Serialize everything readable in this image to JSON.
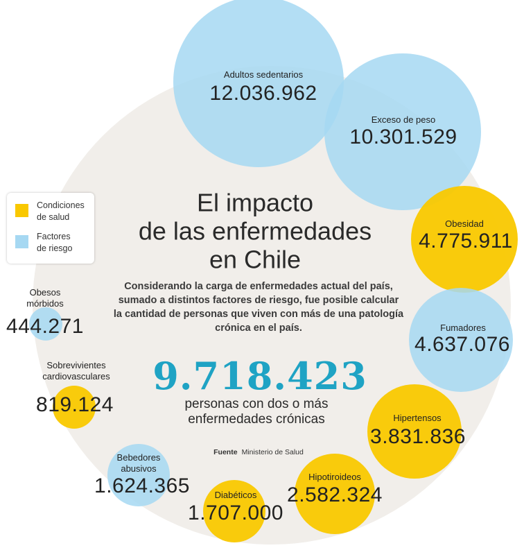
{
  "colors": {
    "condiciones": "#f9c800",
    "factores": "#a6d8f2",
    "background_circle": "#f1eeea",
    "highlight": "#1fa3c4"
  },
  "title": [
    "El impacto",
    "de las enfermedades",
    "en Chile"
  ],
  "intro": [
    "Considerando la carga de enfermedades actual del país,",
    "sumado a distintos factores de riesgo, fue posible calcular",
    "la cantidad de personas que viven con más de una patología",
    "crónica en el país."
  ],
  "total": {
    "value": "9.718.423",
    "label": [
      "personas con dos o más",
      "enfermedades crónicas"
    ]
  },
  "source": {
    "label": "Fuente",
    "text": "Ministerio de Salud"
  },
  "legend": [
    {
      "label": [
        "Condiciones",
        "de salud"
      ],
      "category": "condiciones"
    },
    {
      "label": [
        "Factores",
        "de riesgo"
      ],
      "category": "factores"
    }
  ],
  "chart_data": {
    "type": "bubble",
    "title": "El impacto de las enfermedades en Chile",
    "unit": "personas",
    "series": [
      {
        "name": "Adultos sedentarios",
        "label": [
          "Adultos sedentarios"
        ],
        "display": "12.036.962",
        "value": 12036962,
        "category": "factores"
      },
      {
        "name": "Exceso de peso",
        "label": [
          "Exceso de peso"
        ],
        "display": "10.301.529",
        "value": 10301529,
        "category": "factores"
      },
      {
        "name": "Obesidad",
        "label": [
          "Obesidad"
        ],
        "display": "4.775.911",
        "value": 4775911,
        "category": "condiciones"
      },
      {
        "name": "Fumadores",
        "label": [
          "Fumadores"
        ],
        "display": "4.637.076",
        "value": 4637076,
        "category": "factores"
      },
      {
        "name": "Hipertensos",
        "label": [
          "Hipertensos"
        ],
        "display": "3.831.836",
        "value": 3831836,
        "category": "condiciones"
      },
      {
        "name": "Hipotiroideos",
        "label": [
          "Hipotiroideos"
        ],
        "display": "2.582.324",
        "value": 2582324,
        "category": "condiciones"
      },
      {
        "name": "Diabéticos",
        "label": [
          "Diabéticos"
        ],
        "display": "1.707.000",
        "value": 1707000,
        "category": "condiciones"
      },
      {
        "name": "Bebedores abusivos",
        "label": [
          "Bebedores",
          "abusivos"
        ],
        "display": "1.624.365",
        "value": 1624365,
        "category": "factores"
      },
      {
        "name": "Sobrevivientes cardiovasculares",
        "label": [
          "Sobrevivientes",
          "cardiovasculares"
        ],
        "display": "819.124",
        "value": 819124,
        "category": "condiciones"
      },
      {
        "name": "Obesos mórbidos",
        "label": [
          "Obesos",
          "mórbidos"
        ],
        "display": "444.271",
        "value": 444271,
        "category": "factores"
      }
    ]
  }
}
